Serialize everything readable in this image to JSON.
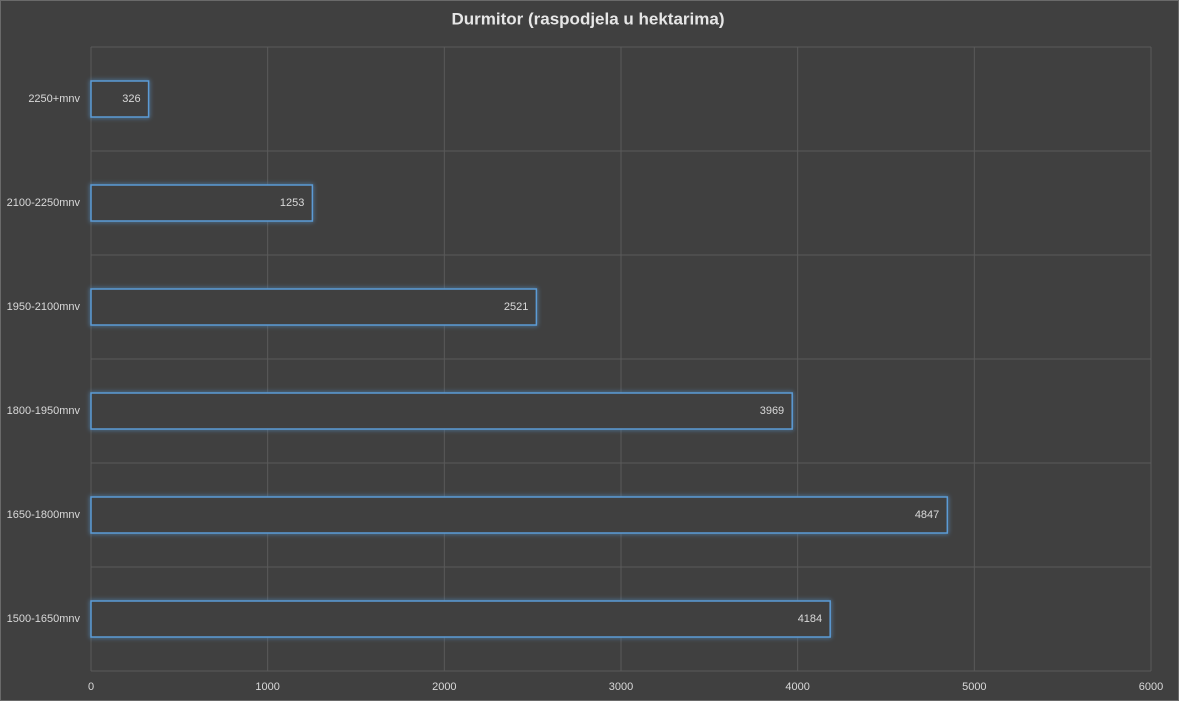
{
  "chart_data": {
    "type": "bar",
    "orientation": "horizontal",
    "title": "Durmitor (raspodjela u hektarima)",
    "categories": [
      "2250+mnv",
      "2100-2250mnv",
      "1950-2100mnv",
      "1800-1950mnv",
      "1650-1800mnv",
      "1500-1650mnv"
    ],
    "values": [
      326,
      1253,
      2521,
      3969,
      4847,
      4184
    ],
    "color": "#5b9bd5",
    "xlim": [
      0,
      6000
    ],
    "xticks": [
      0,
      1000,
      2000,
      3000,
      4000,
      5000,
      6000
    ],
    "grid": true
  }
}
